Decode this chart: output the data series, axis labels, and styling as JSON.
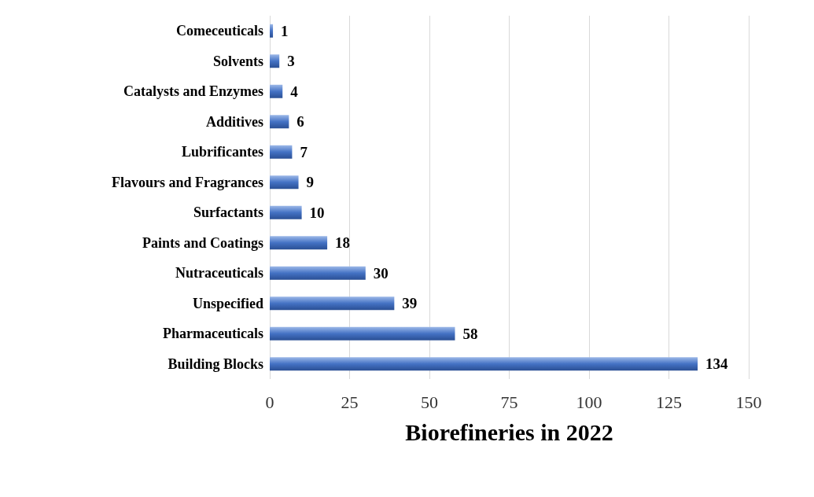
{
  "chart_data": {
    "type": "bar",
    "orientation": "horizontal",
    "xlabel": "Biorefineries in 2022",
    "categories": [
      "Comeceuticals",
      "Solvents",
      "Catalysts and Enzymes",
      "Additives",
      "Lubrificantes",
      "Flavours and Fragrances",
      "Surfactants",
      "Paints and Coatings",
      "Nutraceuticals",
      "Unspecified",
      "Pharmaceuticals",
      "Building Blocks"
    ],
    "values": [
      1,
      3,
      4,
      6,
      7,
      9,
      10,
      18,
      30,
      39,
      58,
      134
    ],
    "color": "#4472c4",
    "xlim": [
      0,
      150
    ],
    "xticks": [
      0,
      25,
      50,
      75,
      100,
      125,
      150
    ],
    "grid": "x",
    "data_labels": true
  }
}
